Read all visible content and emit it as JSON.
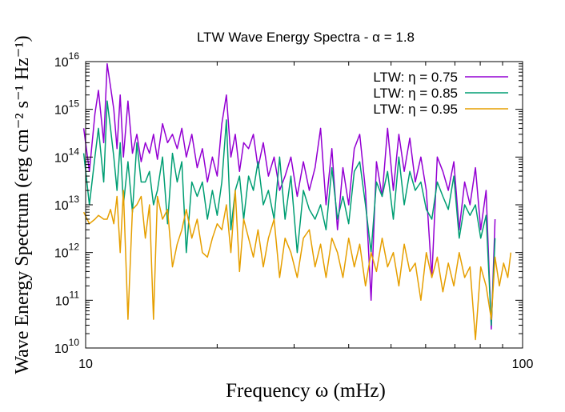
{
  "chart_data": {
    "type": "line",
    "title": "LTW Wave Energy Spectra - α = 1.8",
    "xlabel": "Frequency ω (mHz)",
    "ylabel": "Wave Energy Spectrum (erg cm⁻² s⁻¹ Hz⁻¹)",
    "x_scale": "log",
    "y_scale": "log",
    "xlim": [
      10,
      100
    ],
    "ylim": [
      10000000000.0,
      1e+16
    ],
    "x_ticks": [
      {
        "value": 10,
        "label": "10"
      },
      {
        "value": 100,
        "label": "100"
      }
    ],
    "y_ticks": [
      {
        "value": 10000000000.0,
        "base": "10",
        "exp": "10"
      },
      {
        "value": 100000000000.0,
        "base": "10",
        "exp": "11"
      },
      {
        "value": 1000000000000.0,
        "base": "10",
        "exp": "12"
      },
      {
        "value": 10000000000000.0,
        "base": "10",
        "exp": "13"
      },
      {
        "value": 100000000000000.0,
        "base": "10",
        "exp": "14"
      },
      {
        "value": 1000000000000000.0,
        "base": "10",
        "exp": "15"
      },
      {
        "value": 1e+16,
        "base": "10",
        "exp": "16"
      }
    ],
    "legend_position": "top-right",
    "grid": false,
    "series": [
      {
        "name": "LTW: η = 0.75",
        "color": "#9400d3",
        "x": [
          9.9,
          10.2,
          10.5,
          10.7,
          11.0,
          11.2,
          11.4,
          11.6,
          11.8,
          12.0,
          12.2,
          12.5,
          12.8,
          13.1,
          13.4,
          13.7,
          14.0,
          14.3,
          14.6,
          15.0,
          15.4,
          15.8,
          16.2,
          16.6,
          17.0,
          17.5,
          18.0,
          18.5,
          19.0,
          19.5,
          20.0,
          20.5,
          21.0,
          21.5,
          22.0,
          22.5,
          23.0,
          23.6,
          24.2,
          24.8,
          25.5,
          26.2,
          27.0,
          27.8,
          28.6,
          29.5,
          30.5,
          31.5,
          32.5,
          33.5,
          34.5,
          35.5,
          36.6,
          37.7,
          38.8,
          40.0,
          41.2,
          42.4,
          43.7,
          45.0,
          46.3,
          47.7,
          49.1,
          50.6,
          52.1,
          53.6,
          55.2,
          56.8,
          58.5,
          60.2,
          62.0,
          63.8,
          65.7,
          67.6,
          69.6,
          71.6,
          73.7,
          75.8,
          78.0,
          80.2,
          82.5,
          84.8,
          86.5
        ],
        "y": [
          400000000000000.0,
          50000000000000.0,
          800000000000000.0,
          2500000000000000.0,
          200000000000000.0,
          9000000000000000.0,
          3000000000000000.0,
          1000000000000000.0,
          150000000000000.0,
          2000000000000000.0,
          100000000000000.0,
          1500000000000000.0,
          120000000000000.0,
          300000000000000.0,
          80000000000000.0,
          200000000000000.0,
          120000000000000.0,
          300000000000000.0,
          90000000000000.0,
          500000000000000.0,
          200000000000000.0,
          300000000000000.0,
          150000000000000.0,
          400000000000000.0,
          100000000000000.0,
          300000000000000.0,
          60000000000000.0,
          150000000000000.0,
          30000000000000.0,
          100000000000000.0,
          40000000000000.0,
          500000000000000.0,
          2000000000000000.0,
          100000000000000.0,
          300000000000000.0,
          50000000000000.0,
          200000000000000.0,
          150000000000000.0,
          300000000000000.0,
          60000000000000.0,
          200000000000000.0,
          40000000000000.0,
          100000000000000.0,
          20000000000000.0,
          40000000000000.0,
          100000000000000.0,
          15000000000000.0,
          80000000000000.0,
          20000000000000.0,
          60000000000000.0,
          400000000000000.0,
          10000000000000.0,
          150000000000000.0,
          3000000000000.0,
          60000000000000.0,
          10000000000000.0,
          150000000000000.0,
          300000000000000.0,
          20000000000000.0,
          100000000000.0,
          80000000000000.0,
          15000000000000.0,
          400000000000000.0,
          20000000000000.0,
          300000000000000.0,
          50000000000000.0,
          250000000000000.0,
          30000000000000.0,
          100000000000000.0,
          20000000000000.0,
          300000000000.0,
          100000000000000.0,
          50000000000000.0,
          20000000000000.0,
          80000000000000.0,
          3000000000000.0,
          30000000000000.0,
          10000000000000.0,
          60000000000000.0,
          3000000000000.0,
          20000000000000.0,
          25000000000.0,
          5000000000000.0
        ]
      },
      {
        "name": "LTW: η = 0.85",
        "color": "#009e73",
        "x": [
          9.9,
          10.2,
          10.5,
          10.7,
          11.0,
          11.2,
          11.4,
          11.6,
          11.8,
          12.0,
          12.2,
          12.5,
          12.8,
          13.1,
          13.4,
          13.7,
          14.0,
          14.3,
          14.6,
          15.0,
          15.4,
          15.8,
          16.2,
          16.6,
          17.0,
          17.5,
          18.0,
          18.5,
          19.0,
          19.5,
          20.0,
          20.5,
          21.0,
          21.5,
          22.0,
          22.5,
          23.0,
          23.6,
          24.2,
          24.8,
          25.5,
          26.2,
          27.0,
          27.8,
          28.6,
          29.5,
          30.5,
          31.5,
          32.5,
          33.5,
          34.5,
          35.5,
          36.6,
          37.7,
          38.8,
          40.0,
          41.2,
          42.4,
          43.7,
          45.0,
          46.3,
          47.7,
          49.1,
          50.6,
          52.1,
          53.6,
          55.2,
          56.8,
          58.5,
          60.2,
          62.0,
          63.8,
          65.7,
          67.6,
          69.6,
          71.6,
          73.7,
          75.8,
          78.0,
          80.2,
          82.5,
          84.8,
          86.5
        ],
        "y": [
          120000000000000.0,
          10000000000000.0,
          100000000000000.0,
          400000000000000.0,
          30000000000000.0,
          1500000000000000.0,
          400000000000000.0,
          100000000000000.0,
          20000000000000.0,
          200000000000000.0,
          10000000000000.0,
          80000000000000.0,
          7000000000000.0,
          200000000000000.0,
          30000000000000.0,
          30000000000000.0,
          50000000000000.0,
          10000000000000.0,
          20000000000000.0,
          100000000000000.0,
          4000000000000.0,
          120000000000000.0,
          30000000000000.0,
          80000000000000.0,
          1000000000000.0,
          30000000000000.0,
          15000000000000.0,
          30000000000000.0,
          5000000000000.0,
          20000000000000.0,
          6000000000000.0,
          30000000000000.0,
          600000000000000.0,
          3000000000000.0,
          20000000000000.0,
          40000000000000.0,
          5000000000000.0,
          40000000000000.0,
          20000000000000.0,
          80000000000000.0,
          10000000000000.0,
          20000000000000.0,
          5000000000000.0,
          100000000000000.0,
          5000000000000.0,
          40000000000000.0,
          1000000000000.0,
          20000000000000.0,
          8000000000000.0,
          5000000000000.0,
          10000000000000.0,
          3000000000000.0,
          60000000000000.0,
          5000000000000.0,
          15000000000000.0,
          4000000000000.0,
          50000000000000.0,
          80000000000000.0,
          10000000000000.0,
          1000000000000.0,
          30000000000000.0,
          15000000000000.0,
          50000000000000.0,
          5000000000000.0,
          100000000000000.0,
          10000000000000.0,
          50000000000000.0,
          20000000000000.0,
          30000000000000.0,
          8000000000000.0,
          5000000000000.0,
          30000000000000.0,
          15000000000000.0,
          8000000000000.0,
          40000000000000.0,
          2000000000000.0,
          10000000000000.0,
          6000000000000.0,
          10000000000000.0,
          2000000000000.0,
          6000000000000.0,
          30000000000.0,
          2000000000000.0
        ]
      },
      {
        "name": "LTW: η = 0.95",
        "color": "#e69f00",
        "x": [
          9.9,
          10.2,
          10.5,
          10.7,
          11.0,
          11.2,
          11.4,
          11.6,
          11.8,
          12.0,
          12.2,
          12.5,
          12.8,
          13.1,
          13.4,
          13.7,
          14.0,
          14.3,
          14.6,
          15.0,
          15.4,
          15.8,
          16.2,
          16.6,
          17.0,
          17.5,
          18.0,
          18.5,
          19.0,
          19.5,
          20.0,
          20.5,
          21.0,
          21.5,
          22.0,
          22.5,
          23.0,
          23.6,
          24.2,
          24.8,
          25.5,
          26.2,
          27.0,
          27.8,
          28.6,
          29.5,
          30.5,
          31.5,
          32.5,
          33.5,
          34.5,
          35.5,
          36.6,
          37.7,
          38.8,
          40.0,
          41.2,
          42.4,
          43.7,
          45.0,
          46.3,
          47.7,
          49.1,
          50.6,
          52.1,
          53.6,
          55.2,
          56.8,
          58.5,
          60.2,
          62.0,
          63.8,
          65.7,
          67.6,
          69.6,
          71.6,
          73.7,
          75.8,
          78.0,
          80.2,
          82.5,
          84.8,
          86.5,
          88.5,
          90.5,
          92.5,
          94.0
        ],
        "y": [
          7000000000000.0,
          4000000000000.0,
          5000000000000.0,
          6000000000000.0,
          5000000000000.0,
          5000000000000.0,
          8000000000000.0,
          4000000000000.0,
          15000000000000.0,
          1000000000000.0,
          20000000000000.0,
          40000000000.0,
          8000000000000.0,
          10000000000000.0,
          15000000000000.0,
          2000000000000.0,
          10000000000000.0,
          40000000000.0,
          15000000000000.0,
          5000000000000.0,
          8000000000000.0,
          500000000000.0,
          1500000000000.0,
          3000000000000.0,
          8000000000000.0,
          2000000000000.0,
          5000000000000.0,
          1000000000000.0,
          800000000000.0,
          2000000000000.0,
          4000000000000.0,
          3000000000000.0,
          10000000000000.0,
          1000000000000.0,
          20000000000000.0,
          400000000000.0,
          5000000000000.0,
          2000000000000.0,
          800000000000.0,
          3000000000000.0,
          500000000000.0,
          2000000000000.0,
          5000000000000.0,
          300000000000.0,
          2000000000000.0,
          1000000000000.0,
          300000000000.0,
          2000000000000.0,
          3000000000000.0,
          500000000000.0,
          1500000000000.0,
          300000000000.0,
          2000000000000.0,
          1000000000000.0,
          300000000000.0,
          2000000000000.0,
          500000000000.0,
          1500000000000.0,
          200000000000.0,
          1000000000000.0,
          400000000000.0,
          2000000000000.0,
          500000000000.0,
          1000000000000.0,
          200000000000.0,
          1500000000000.0,
          400000000000.0,
          600000000000.0,
          100000000000.0,
          1000000000000.0,
          300000000000.0,
          800000000000.0,
          150000000000.0,
          600000000000.0,
          200000000000.0,
          1000000000000.0,
          300000000000.0,
          500000000000.0,
          15000000000.0,
          500000000000.0,
          200000000000.0,
          40000000000.0,
          800000000000.0,
          200000000000.0,
          600000000000.0,
          300000000000.0,
          1000000000000.0
        ]
      }
    ]
  }
}
